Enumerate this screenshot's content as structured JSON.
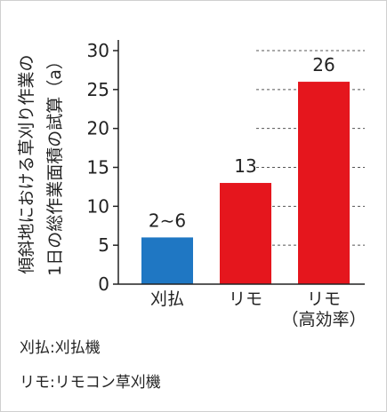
{
  "chart_data": {
    "type": "bar",
    "ylabel_lines": [
      "傾斜地における草刈り作業の",
      "1日の総作業面積の試算（a）"
    ],
    "categories": [
      {
        "lines": [
          "刈払"
        ]
      },
      {
        "lines": [
          "リモ"
        ]
      },
      {
        "lines": [
          "リモ",
          "（高効率）"
        ]
      }
    ],
    "values": [
      6,
      13,
      26
    ],
    "data_labels": [
      "2∼6",
      "13",
      "26"
    ],
    "colors": [
      "#1f77c3",
      "#e5161d",
      "#e5161d"
    ],
    "yticks": [
      0,
      5,
      10,
      15,
      20,
      25,
      30
    ],
    "ylim": [
      0,
      30
    ],
    "grid": "dashed-horizontal-right"
  },
  "notes": [
    "刈払:刈払機",
    "リモ:リモコン草刈機"
  ]
}
